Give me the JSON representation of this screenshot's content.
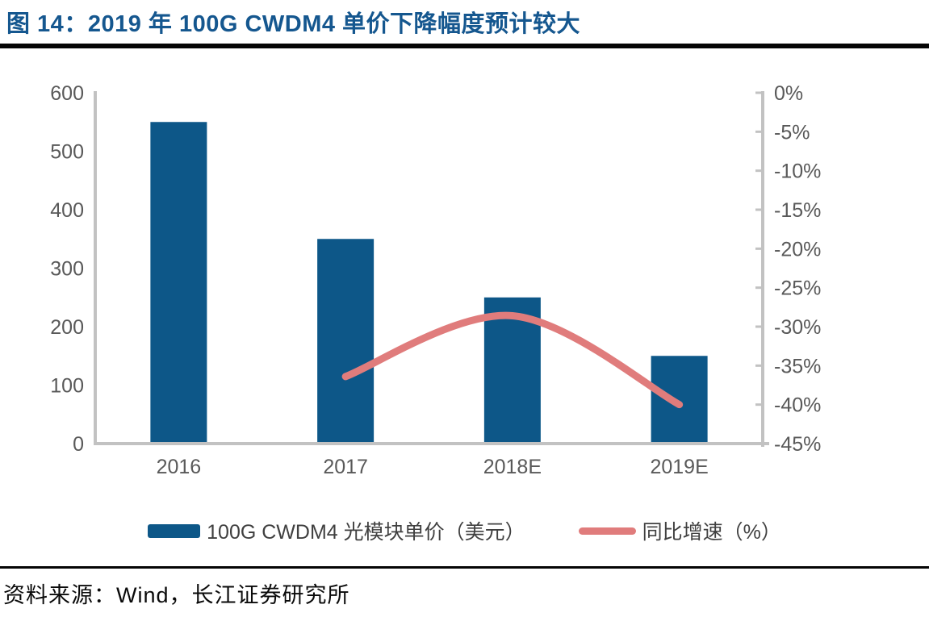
{
  "title": {
    "text": "图 14：2019 年 100G CWDM4 单价下降幅度预计较大"
  },
  "source": {
    "text": "资料来源：Wind，长江证券研究所"
  },
  "legend": [
    {
      "label": "100G CWDM4 光模块单价（美元）",
      "swatch": "bar"
    },
    {
      "label": "同比增速（%）",
      "swatch": "line"
    }
  ],
  "colors": {
    "bar": "#0D5788",
    "line": "#E07C7C",
    "title": "#15578F",
    "axis": "#C2C2C2",
    "tick_text": "#595959",
    "legend_text": "#404040",
    "rule": "#050505"
  },
  "chart_data": {
    "type": "bar",
    "subtype": "bar+line combo, dual axis",
    "title": "2019 年 100G CWDM4 单价下降幅度预计较大",
    "categories": [
      "2016",
      "2017",
      "2018E",
      "2019E"
    ],
    "series": [
      {
        "name": "100G CWDM4 光模块单价（美元）",
        "type": "bar",
        "axis": "left",
        "values": [
          550,
          350,
          250,
          150
        ]
      },
      {
        "name": "同比增速（%）",
        "type": "line",
        "axis": "right",
        "values": [
          null,
          -36.4,
          -28.6,
          -40.0
        ]
      }
    ],
    "left_axis": {
      "min": 0,
      "max": 600,
      "step": 100,
      "ticks": [
        "600",
        "500",
        "400",
        "300",
        "200",
        "100",
        "0"
      ]
    },
    "right_axis": {
      "min": -45,
      "max": 0,
      "step": 5,
      "ticks": [
        "0%",
        "-5%",
        "-10%",
        "-15%",
        "-20%",
        "-25%",
        "-30%",
        "-35%",
        "-40%",
        "-45%"
      ]
    },
    "grid": false,
    "legend_position": "bottom",
    "xlabel": "",
    "ylabel": ""
  }
}
